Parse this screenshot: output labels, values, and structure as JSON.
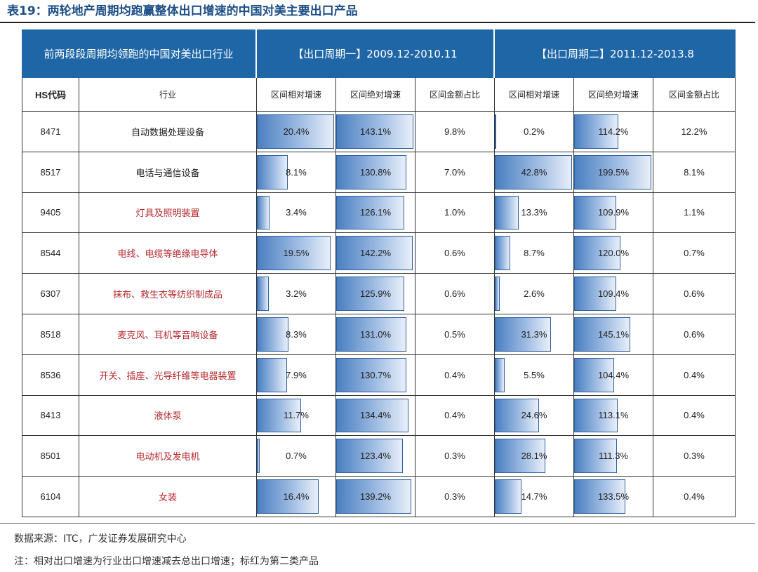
{
  "title": "表19：两轮地产周期均跑赢整体出口增速的中国对美主要出口产品",
  "bands": {
    "industry": "前两段段周期均领跑的中国对美出口行业",
    "period1": "【出口周期一】2009.12-2010.11",
    "period2": "【出口周期二】2011.12-2013.8"
  },
  "headers": [
    "HS代码",
    "行业",
    "区间相对增速",
    "区间绝对增速",
    "区间金额占比",
    "区间相对增速",
    "区间绝对增速",
    "区间金额占比"
  ],
  "rows": [
    {
      "hs": "8471",
      "industry": "自动数据处理设备",
      "red": false,
      "p1": {
        "rel": 20.4,
        "abs": 143.1,
        "share": "9.8%"
      },
      "p2": {
        "rel": 0.2,
        "abs": 114.2,
        "share": "12.2%"
      }
    },
    {
      "hs": "8517",
      "industry": "电话与通信设备",
      "red": false,
      "p1": {
        "rel": 8.1,
        "abs": 130.8,
        "share": "7.0%"
      },
      "p2": {
        "rel": 42.8,
        "abs": 199.5,
        "share": "8.1%"
      }
    },
    {
      "hs": "9405",
      "industry": "灯具及照明装置",
      "red": true,
      "p1": {
        "rel": 3.4,
        "abs": 126.1,
        "share": "1.0%"
      },
      "p2": {
        "rel": 13.3,
        "abs": 109.9,
        "share": "1.1%"
      }
    },
    {
      "hs": "8544",
      "industry": "电线、电缆等绝缘电导体",
      "red": true,
      "p1": {
        "rel": 19.5,
        "abs": 142.2,
        "share": "0.6%"
      },
      "p2": {
        "rel": 8.7,
        "abs": 120.0,
        "share": "0.7%"
      }
    },
    {
      "hs": "6307",
      "industry": "抹布、救生衣等纺织制成品",
      "red": true,
      "p1": {
        "rel": 3.2,
        "abs": 125.9,
        "share": "0.6%"
      },
      "p2": {
        "rel": 2.6,
        "abs": 109.4,
        "share": "0.6%"
      }
    },
    {
      "hs": "8518",
      "industry": "麦克风、耳机等音响设备",
      "red": true,
      "p1": {
        "rel": 8.3,
        "abs": 131.0,
        "share": "0.5%"
      },
      "p2": {
        "rel": 31.3,
        "abs": 145.1,
        "share": "0.6%"
      }
    },
    {
      "hs": "8536",
      "industry": "开关、插座、光导纤维等电器装置",
      "red": true,
      "p1": {
        "rel": 7.9,
        "abs": 130.7,
        "share": "0.4%"
      },
      "p2": {
        "rel": 5.5,
        "abs": 104.4,
        "share": "0.4%"
      }
    },
    {
      "hs": "8413",
      "industry": "液体泵",
      "red": true,
      "p1": {
        "rel": 11.7,
        "abs": 134.4,
        "share": "0.4%"
      },
      "p2": {
        "rel": 24.6,
        "abs": 113.1,
        "share": "0.4%"
      }
    },
    {
      "hs": "8501",
      "industry": "电动机及发电机",
      "red": true,
      "p1": {
        "rel": 0.7,
        "abs": 123.4,
        "share": "0.3%"
      },
      "p2": {
        "rel": 28.1,
        "abs": 111.3,
        "share": "0.3%"
      }
    },
    {
      "hs": "6104",
      "industry": "女装",
      "red": true,
      "p1": {
        "rel": 16.4,
        "abs": 139.2,
        "share": "0.3%"
      },
      "p2": {
        "rel": 14.7,
        "abs": 133.5,
        "share": "0.4%"
      }
    }
  ],
  "colors": {
    "band": "#1f66a6",
    "bar": "#4a7fc1",
    "red_text": "#b7282e",
    "title": "#1d4f86"
  },
  "source": "数据来源：ITC，广发证券发展研究中心",
  "note": "注：相对出口增速为行业出口增速减去总出口增速；标红为第二类产品"
}
